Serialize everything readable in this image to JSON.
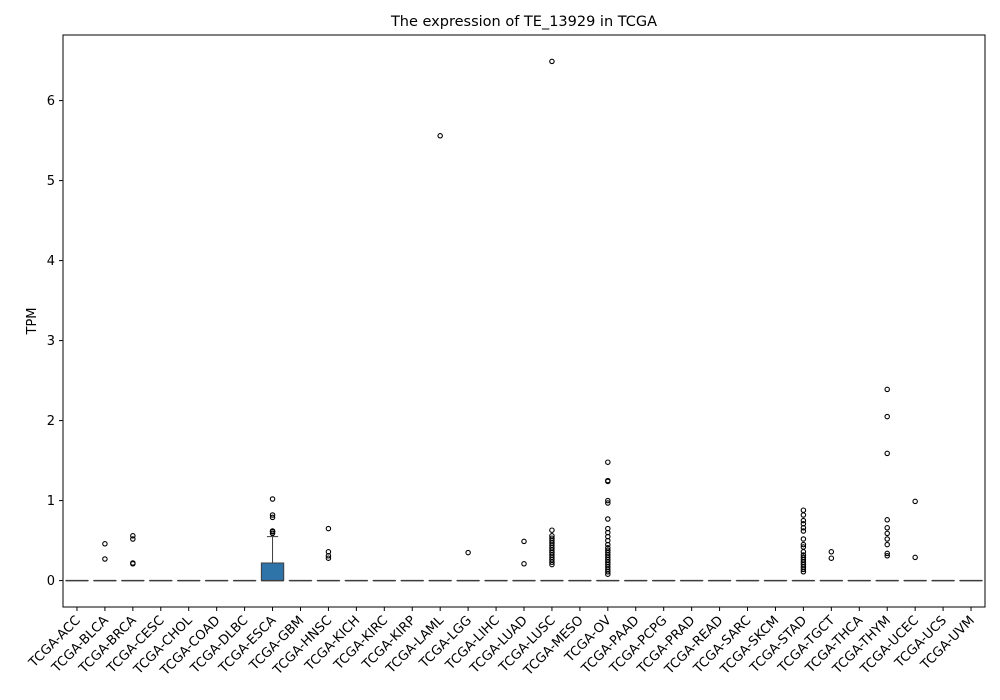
{
  "chart_data": {
    "type": "box",
    "title": "The expression of TE_13929 in TCGA",
    "xlabel": "",
    "ylabel": "TPM",
    "ylim": [
      -0.33,
      6.82
    ],
    "yticks": [
      0,
      1,
      2,
      3,
      4,
      5,
      6
    ],
    "grid": false,
    "legend": "none",
    "box_color": "#2e74a8",
    "categories": [
      "TCGA-ACC",
      "TCGA-BLCA",
      "TCGA-BRCA",
      "TCGA-CESC",
      "TCGA-CHOL",
      "TCGA-COAD",
      "TCGA-DLBC",
      "TCGA-ESCA",
      "TCGA-GBM",
      "TCGA-HNSC",
      "TCGA-KICH",
      "TCGA-KIRC",
      "TCGA-KIRP",
      "TCGA-LAML",
      "TCGA-LGG",
      "TCGA-LIHC",
      "TCGA-LUAD",
      "TCGA-LUSC",
      "TCGA-MESO",
      "TCGA-OV",
      "TCGA-PAAD",
      "TCGA-PCPG",
      "TCGA-PRAD",
      "TCGA-READ",
      "TCGA-SARC",
      "TCGA-SKCM",
      "TCGA-STAD",
      "TCGA-TGCT",
      "TCGA-THCA",
      "TCGA-THYM",
      "TCGA-UCEC",
      "TCGA-UCS",
      "TCGA-UVM"
    ],
    "boxes": [
      {
        "q1": 0,
        "median": 0,
        "q3": 0,
        "whislo": 0,
        "whishi": 0,
        "fliers": []
      },
      {
        "q1": 0,
        "median": 0,
        "q3": 0,
        "whislo": 0,
        "whishi": 0,
        "fliers": [
          0.46,
          0.27
        ]
      },
      {
        "q1": 0,
        "median": 0,
        "q3": 0,
        "whislo": 0,
        "whishi": 0,
        "fliers": [
          0.56,
          0.52,
          0.22,
          0.21
        ]
      },
      {
        "q1": 0,
        "median": 0,
        "q3": 0,
        "whislo": 0,
        "whishi": 0,
        "fliers": []
      },
      {
        "q1": 0,
        "median": 0,
        "q3": 0,
        "whislo": 0,
        "whishi": 0,
        "fliers": []
      },
      {
        "q1": 0,
        "median": 0,
        "q3": 0,
        "whislo": 0,
        "whishi": 0,
        "fliers": []
      },
      {
        "q1": 0,
        "median": 0,
        "q3": 0,
        "whislo": 0,
        "whishi": 0,
        "fliers": []
      },
      {
        "q1": 0,
        "median": 0,
        "q3": 0.22,
        "whislo": 0,
        "whishi": 0.55,
        "fliers": [
          1.02,
          0.82,
          0.79,
          0.62,
          0.61,
          0.59
        ]
      },
      {
        "q1": 0,
        "median": 0,
        "q3": 0,
        "whislo": 0,
        "whishi": 0,
        "fliers": []
      },
      {
        "q1": 0,
        "median": 0,
        "q3": 0,
        "whislo": 0,
        "whishi": 0,
        "fliers": [
          0.65,
          0.36,
          0.31,
          0.28
        ]
      },
      {
        "q1": 0,
        "median": 0,
        "q3": 0,
        "whislo": 0,
        "whishi": 0,
        "fliers": []
      },
      {
        "q1": 0,
        "median": 0,
        "q3": 0,
        "whislo": 0,
        "whishi": 0,
        "fliers": []
      },
      {
        "q1": 0,
        "median": 0,
        "q3": 0,
        "whislo": 0,
        "whishi": 0,
        "fliers": []
      },
      {
        "q1": 0,
        "median": 0,
        "q3": 0,
        "whislo": 0,
        "whishi": 0,
        "fliers": [
          5.56
        ]
      },
      {
        "q1": 0,
        "median": 0,
        "q3": 0,
        "whislo": 0,
        "whishi": 0,
        "fliers": [
          0.35
        ]
      },
      {
        "q1": 0,
        "median": 0,
        "q3": 0,
        "whislo": 0,
        "whishi": 0,
        "fliers": []
      },
      {
        "q1": 0,
        "median": 0,
        "q3": 0,
        "whislo": 0,
        "whishi": 0,
        "fliers": [
          0.49,
          0.21
        ]
      },
      {
        "q1": 0,
        "median": 0,
        "q3": 0,
        "whislo": 0,
        "whishi": 0,
        "fliers": [
          6.49,
          0.63,
          0.56,
          0.53,
          0.5,
          0.47,
          0.44,
          0.41,
          0.38,
          0.35,
          0.32,
          0.29,
          0.26,
          0.23,
          0.2
        ]
      },
      {
        "q1": 0,
        "median": 0,
        "q3": 0,
        "whislo": 0,
        "whishi": 0,
        "fliers": []
      },
      {
        "q1": 0,
        "median": 0,
        "q3": 0,
        "whislo": 0,
        "whishi": 0,
        "fliers": [
          1.48,
          1.25,
          1.24,
          1.0,
          0.97,
          0.77,
          0.65,
          0.6,
          0.55,
          0.5,
          0.45,
          0.41,
          0.38,
          0.35,
          0.32,
          0.29,
          0.26,
          0.23,
          0.2,
          0.17,
          0.14,
          0.11,
          0.08
        ]
      },
      {
        "q1": 0,
        "median": 0,
        "q3": 0,
        "whislo": 0,
        "whishi": 0,
        "fliers": []
      },
      {
        "q1": 0,
        "median": 0,
        "q3": 0,
        "whislo": 0,
        "whishi": 0,
        "fliers": []
      },
      {
        "q1": 0,
        "median": 0,
        "q3": 0,
        "whislo": 0,
        "whishi": 0,
        "fliers": []
      },
      {
        "q1": 0,
        "median": 0,
        "q3": 0,
        "whislo": 0,
        "whishi": 0,
        "fliers": []
      },
      {
        "q1": 0,
        "median": 0,
        "q3": 0,
        "whislo": 0,
        "whishi": 0,
        "fliers": []
      },
      {
        "q1": 0,
        "median": 0,
        "q3": 0,
        "whislo": 0,
        "whishi": 0,
        "fliers": []
      },
      {
        "q1": 0,
        "median": 0,
        "q3": 0,
        "whislo": 0,
        "whishi": 0,
        "fliers": [
          0.88,
          0.82,
          0.75,
          0.71,
          0.66,
          0.62,
          0.52,
          0.45,
          0.42,
          0.36,
          0.32,
          0.29,
          0.26,
          0.23,
          0.2,
          0.17,
          0.14,
          0.11
        ]
      },
      {
        "q1": 0,
        "median": 0,
        "q3": 0,
        "whislo": 0,
        "whishi": 0,
        "fliers": [
          0.36,
          0.28
        ]
      },
      {
        "q1": 0,
        "median": 0,
        "q3": 0,
        "whislo": 0,
        "whishi": 0,
        "fliers": []
      },
      {
        "q1": 0,
        "median": 0,
        "q3": 0,
        "whislo": 0,
        "whishi": 0,
        "fliers": [
          2.39,
          2.05,
          1.59,
          0.76,
          0.66,
          0.59,
          0.52,
          0.45,
          0.34,
          0.31
        ]
      },
      {
        "q1": 0,
        "median": 0,
        "q3": 0,
        "whislo": 0,
        "whishi": 0,
        "fliers": [
          0.99,
          0.29
        ]
      },
      {
        "q1": 0,
        "median": 0,
        "q3": 0,
        "whislo": 0,
        "whishi": 0,
        "fliers": []
      },
      {
        "q1": 0,
        "median": 0,
        "q3": 0,
        "whislo": 0,
        "whishi": 0,
        "fliers": []
      }
    ]
  }
}
